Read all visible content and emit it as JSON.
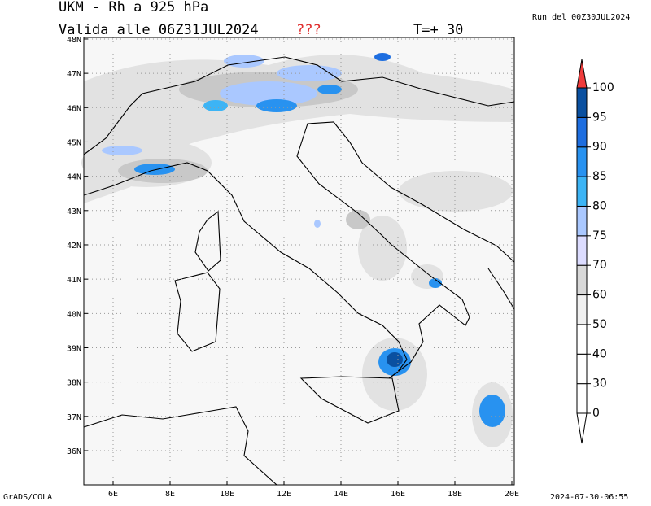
{
  "header": {
    "title": "UKM - Rh a 925 hPa",
    "valid": "Valida alle 06Z31JUL2024",
    "flag": "???",
    "step": "T=+ 30",
    "run": "Run del 00Z30JUL2024"
  },
  "map": {
    "lat_labels": [
      "36N",
      "37N",
      "38N",
      "39N",
      "40N",
      "41N",
      "42N",
      "43N",
      "44N",
      "45N",
      "46N",
      "47N",
      "48N"
    ],
    "lon_labels": [
      "6E",
      "8E",
      "10E",
      "12E",
      "14E",
      "16E",
      "18E",
      "20E"
    ]
  },
  "colorbar": {
    "levels": [
      0,
      30,
      40,
      50,
      60,
      70,
      75,
      80,
      85,
      90,
      95,
      100
    ],
    "colors": [
      "#ffffff",
      "#ffffff",
      "#ffffff",
      "#f0f0f0",
      "#d8d8d8",
      "#dcdcff",
      "#aac8ff",
      "#3cb4f5",
      "#2892f0",
      "#1e6ee0",
      "#0a50a0"
    ],
    "under_color": "#ffffff",
    "over_color": "#f03c3c"
  },
  "footer": {
    "left": "GrADS/COLA",
    "right": "2024-07-30-06:55"
  }
}
